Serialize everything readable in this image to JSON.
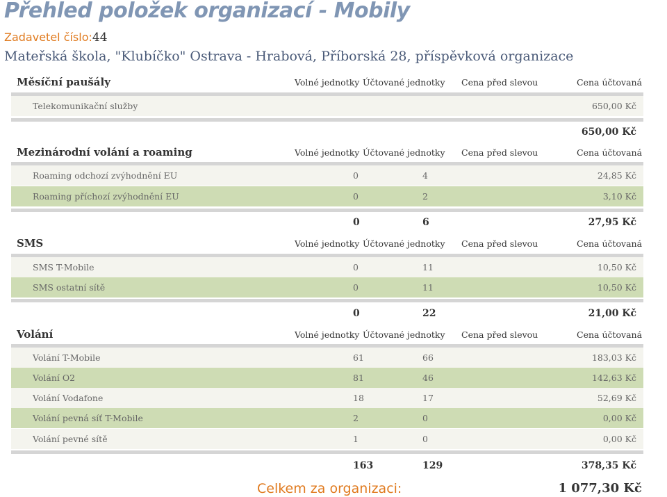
{
  "title": "Přehled položek organizací - Mobily",
  "payer": {
    "label": "Zadavetel číslo:",
    "number": "44"
  },
  "organization": "Mateřská škola, \"Klubíčko\" Ostrava - Hrabová, Příborská 28, příspěvková organizace",
  "columns": {
    "free_units": "Volné jednotky",
    "billed_units": "Účtované jednotky",
    "price_before": "Cena před slevou",
    "price_billed": "Cena účtovaná"
  },
  "sections": [
    {
      "name": "Měsíční paušály",
      "rows": [
        {
          "name": "Telekomunikační služby",
          "free": "",
          "billed": "",
          "price": "650,00 Kč"
        }
      ],
      "total": {
        "free": "",
        "billed": "",
        "price": "650,00 Kč"
      }
    },
    {
      "name": "Mezinárodní volání a roaming",
      "rows": [
        {
          "name": "Roaming odchozí zvýhodnění EU",
          "free": "0",
          "billed": "4",
          "price": "24,85 Kč"
        },
        {
          "name": "Roaming příchozí zvýhodnění EU",
          "free": "0",
          "billed": "2",
          "price": "3,10 Kč"
        }
      ],
      "total": {
        "free": "0",
        "billed": "6",
        "price": "27,95 Kč"
      }
    },
    {
      "name": "SMS",
      "rows": [
        {
          "name": "SMS T-Mobile",
          "free": "0",
          "billed": "11",
          "price": "10,50 Kč"
        },
        {
          "name": "SMS ostatní sítě",
          "free": "0",
          "billed": "11",
          "price": "10,50 Kč"
        }
      ],
      "total": {
        "free": "0",
        "billed": "22",
        "price": "21,00 Kč"
      }
    },
    {
      "name": "Volání",
      "rows": [
        {
          "name": "Volání T-Mobile",
          "free": "61",
          "billed": "66",
          "price": "183,03 Kč"
        },
        {
          "name": "Volání O2",
          "free": "81",
          "billed": "46",
          "price": "142,63 Kč"
        },
        {
          "name": "Volání Vodafone",
          "free": "18",
          "billed": "17",
          "price": "52,69 Kč"
        },
        {
          "name": "Volání pevná síť T-Mobile",
          "free": "2",
          "billed": "0",
          "price": "0,00 Kč"
        },
        {
          "name": "Volání pevné sítě",
          "free": "1",
          "billed": "0",
          "price": "0,00 Kč"
        }
      ],
      "total": {
        "free": "163",
        "billed": "129",
        "price": "378,35 Kč"
      }
    }
  ],
  "grand_total": {
    "label": "Celkem za organizaci:",
    "value": "1 077,30 Kč"
  },
  "colors": {
    "title": "#8096b4",
    "accent": "#e07a1e",
    "row_light": "#f4f4ee",
    "row_green": "#cedcb4",
    "bar": "#d5d5d5"
  }
}
